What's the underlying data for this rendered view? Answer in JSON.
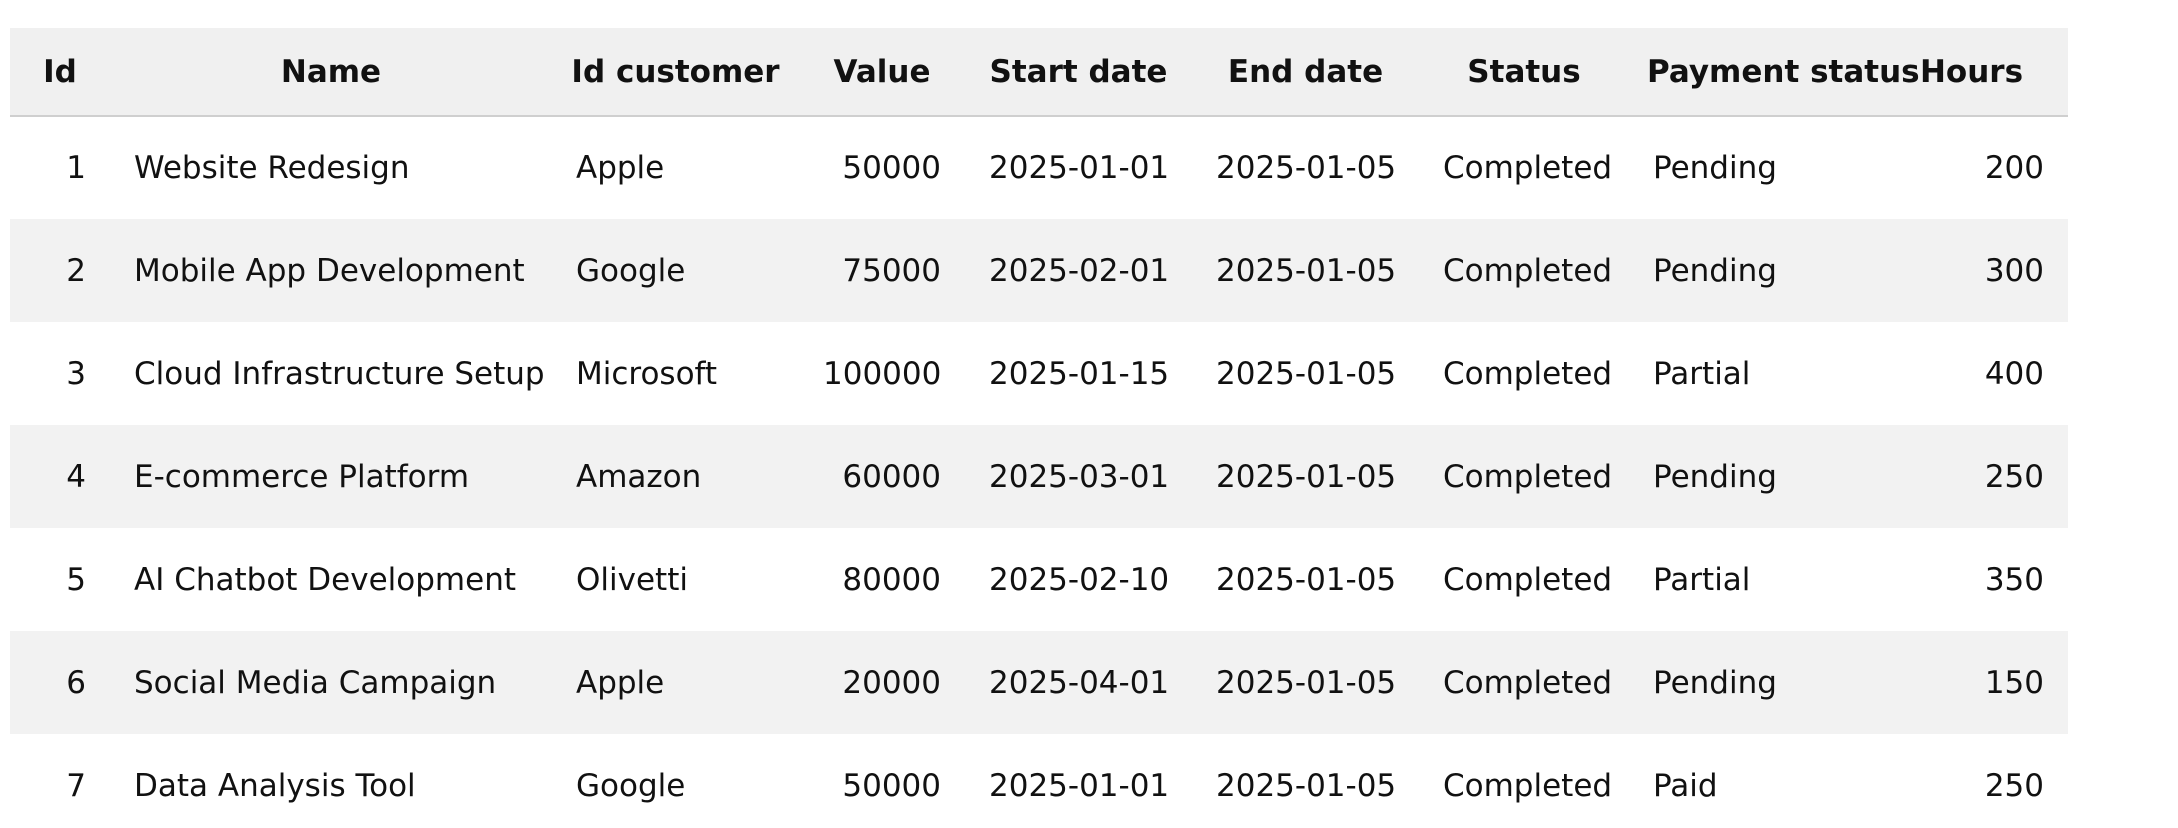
{
  "table": {
    "columns": [
      "Id",
      "Name",
      "Id customer",
      "Value",
      "Start date",
      "End date",
      "Status",
      "Payment status",
      "Hours"
    ],
    "rows": [
      [
        "1",
        "Website Redesign",
        "Apple",
        "50000",
        "2025-01-01",
        "2025-01-05",
        "Completed",
        "Pending",
        "200"
      ],
      [
        "2",
        "Mobile App Development",
        "Google",
        "75000",
        "2025-02-01",
        "2025-01-05",
        "Completed",
        "Pending",
        "300"
      ],
      [
        "3",
        "Cloud Infrastructure Setup",
        "Microsoft",
        "100000",
        "2025-01-15",
        "2025-01-05",
        "Completed",
        "Partial",
        "400"
      ],
      [
        "4",
        "E-commerce Platform",
        "Amazon",
        "60000",
        "2025-03-01",
        "2025-01-05",
        "Completed",
        "Pending",
        "250"
      ],
      [
        "5",
        "AI Chatbot Development",
        "Olivetti",
        "80000",
        "2025-02-10",
        "2025-01-05",
        "Completed",
        "Partial",
        "350"
      ],
      [
        "6",
        "Social Media Campaign",
        "Apple",
        "20000",
        "2025-04-01",
        "2025-01-05",
        "Completed",
        "Pending",
        "150"
      ],
      [
        "7",
        "Data Analysis Tool",
        "Google",
        "50000",
        "2025-01-01",
        "2025-01-05",
        "Completed",
        "Paid",
        "250"
      ]
    ]
  }
}
